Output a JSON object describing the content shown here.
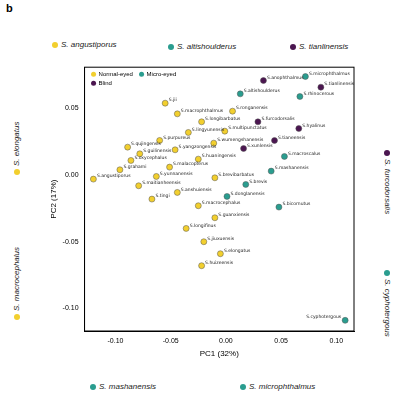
{
  "chart_data": {
    "type": "scatter",
    "panel": "b",
    "x_label": "PC1 (32%)",
    "y_label": "PC2 (17%)",
    "xlim": [
      -0.128,
      0.116
    ],
    "ylim": [
      -0.117,
      0.081
    ],
    "xticks": [
      {
        "value": -0.1,
        "label": "-0.10"
      },
      {
        "value": -0.05,
        "label": "-0.05"
      },
      {
        "value": 0,
        "label": "0.00"
      },
      {
        "value": 0.05,
        "label": "0.05"
      },
      {
        "value": 0.1,
        "label": "0.10"
      }
    ],
    "yticks": [
      {
        "value": -0.1,
        "label": "-0.10"
      },
      {
        "value": -0.05,
        "label": "-0.05"
      },
      {
        "value": 0,
        "label": "0.00"
      },
      {
        "value": 0.05,
        "label": "0.05"
      }
    ],
    "grid": false,
    "legend": "upper left",
    "series": [
      {
        "name": "Normal-eyed",
        "color": "#f2cf2e",
        "marker": "circle",
        "points": [
          {
            "x": -0.12,
            "y": -0.003,
            "label": "S.angustiporus"
          },
          {
            "x": -0.096,
            "y": 0.004,
            "label": "S.grahami"
          },
          {
            "x": -0.086,
            "y": 0.011,
            "label": "S.oxycephalus"
          },
          {
            "x": -0.078,
            "y": 0.016,
            "label": "S.guilinensis"
          },
          {
            "x": -0.089,
            "y": 0.021,
            "label": "S.qujingensis"
          },
          {
            "x": -0.055,
            "y": 0.054,
            "label": "S.jii"
          },
          {
            "x": -0.044,
            "y": 0.046,
            "label": "S.macrophthalmus"
          },
          {
            "x": -0.06,
            "y": 0.026,
            "label": "S.purpureus"
          },
          {
            "x": -0.046,
            "y": 0.019,
            "label": "S.yangzongensis"
          },
          {
            "x": -0.034,
            "y": 0.032,
            "label": "S.lingyunensis"
          },
          {
            "x": -0.022,
            "y": 0.04,
            "label": "S.longibarbatus"
          },
          {
            "x": -0.025,
            "y": 0.012,
            "label": "S.huaningensis"
          },
          {
            "x": -0.011,
            "y": 0.024,
            "label": "S.wumengshanensis"
          },
          {
            "x": -0.051,
            "y": 0.006,
            "label": "S.malacopterus"
          },
          {
            "x": -0.063,
            "y": -0.001,
            "label": "S.yunnanensis"
          },
          {
            "x": -0.079,
            "y": -0.008,
            "label": "S.maitianheensis"
          },
          {
            "x": -0.067,
            "y": -0.018,
            "label": "S.tingi"
          },
          {
            "x": -0.044,
            "y": -0.013,
            "label": "S.anshuiensis"
          },
          {
            "x": -0.025,
            "y": -0.023,
            "label": "S.macrocephalus"
          },
          {
            "x": -0.01,
            "y": -0.032,
            "label": "S.guanxiensis"
          },
          {
            "x": -0.036,
            "y": -0.04,
            "label": "S.longifinus"
          },
          {
            "x": -0.02,
            "y": -0.05,
            "label": "S.jiuxuensis"
          },
          {
            "x": -0.005,
            "y": -0.059,
            "label": "S.elongatus"
          },
          {
            "x": -0.022,
            "y": -0.068,
            "label": "S.huizeensis"
          },
          {
            "x": -0.001,
            "y": 0.033,
            "label": "S.multipunctatus"
          },
          {
            "x": 0.006,
            "y": 0.048,
            "label": "S.ronganensis"
          },
          {
            "x": -0.01,
            "y": -0.002,
            "label": "S.brevibarbatus"
          }
        ]
      },
      {
        "name": "Micro-eyed",
        "color": "#2a9d8f",
        "marker": "circle",
        "points": [
          {
            "x": 0.072,
            "y": 0.074,
            "label": "S.microphthalmus"
          },
          {
            "x": 0.067,
            "y": 0.059,
            "label": "S.rhinocerous"
          },
          {
            "x": 0.013,
            "y": 0.061,
            "label": "S.altishoulderus"
          },
          {
            "x": 0.053,
            "y": 0.014,
            "label": "S.macroscalus"
          },
          {
            "x": 0.041,
            "y": 0.003,
            "label": "S.mashanensis"
          },
          {
            "x": 0.018,
            "y": -0.007,
            "label": "S.brevis"
          },
          {
            "x": 0.001,
            "y": -0.016,
            "label": "S.donglanensis"
          },
          {
            "x": 0.048,
            "y": -0.024,
            "label": "S.bicornutus"
          },
          {
            "x": 0.108,
            "y": -0.109,
            "label": "S.cyphotergous"
          }
        ]
      },
      {
        "name": "Blind",
        "color": "#4b1650",
        "marker": "circle",
        "points": [
          {
            "x": 0.086,
            "y": 0.066,
            "label": "S.tianlinensis"
          },
          {
            "x": 0.034,
            "y": 0.071,
            "label": "S.anophthalmus"
          },
          {
            "x": 0.029,
            "y": 0.04,
            "label": "S.furcodorsalis"
          },
          {
            "x": 0.044,
            "y": 0.026,
            "label": "S.tianeensis"
          },
          {
            "x": 0.016,
            "y": 0.02,
            "label": "S.xunlensis"
          },
          {
            "x": 0.066,
            "y": 0.035,
            "label": "S.hyalinus"
          }
        ]
      }
    ],
    "annotations": [
      {
        "text": "S. angustiporus",
        "color": "#f2cf2e"
      },
      {
        "text": "S. altishoulderus",
        "color": "#2a9d8f"
      },
      {
        "text": "S. tianlinensis",
        "color": "#4b1650"
      },
      {
        "text": "S. elongatus",
        "color": "#f2cf2e"
      },
      {
        "text": "S. macrocephalus",
        "color": "#f2cf2e"
      },
      {
        "text": "S. furcodorsalis",
        "color": "#4b1650"
      },
      {
        "text": "S. cyphotergous",
        "color": "#2a9d8f"
      },
      {
        "text": "S. mashanensis",
        "color": "#2a9d8f"
      },
      {
        "text": "S. microphthalmus",
        "color": "#2a9d8f"
      }
    ]
  }
}
